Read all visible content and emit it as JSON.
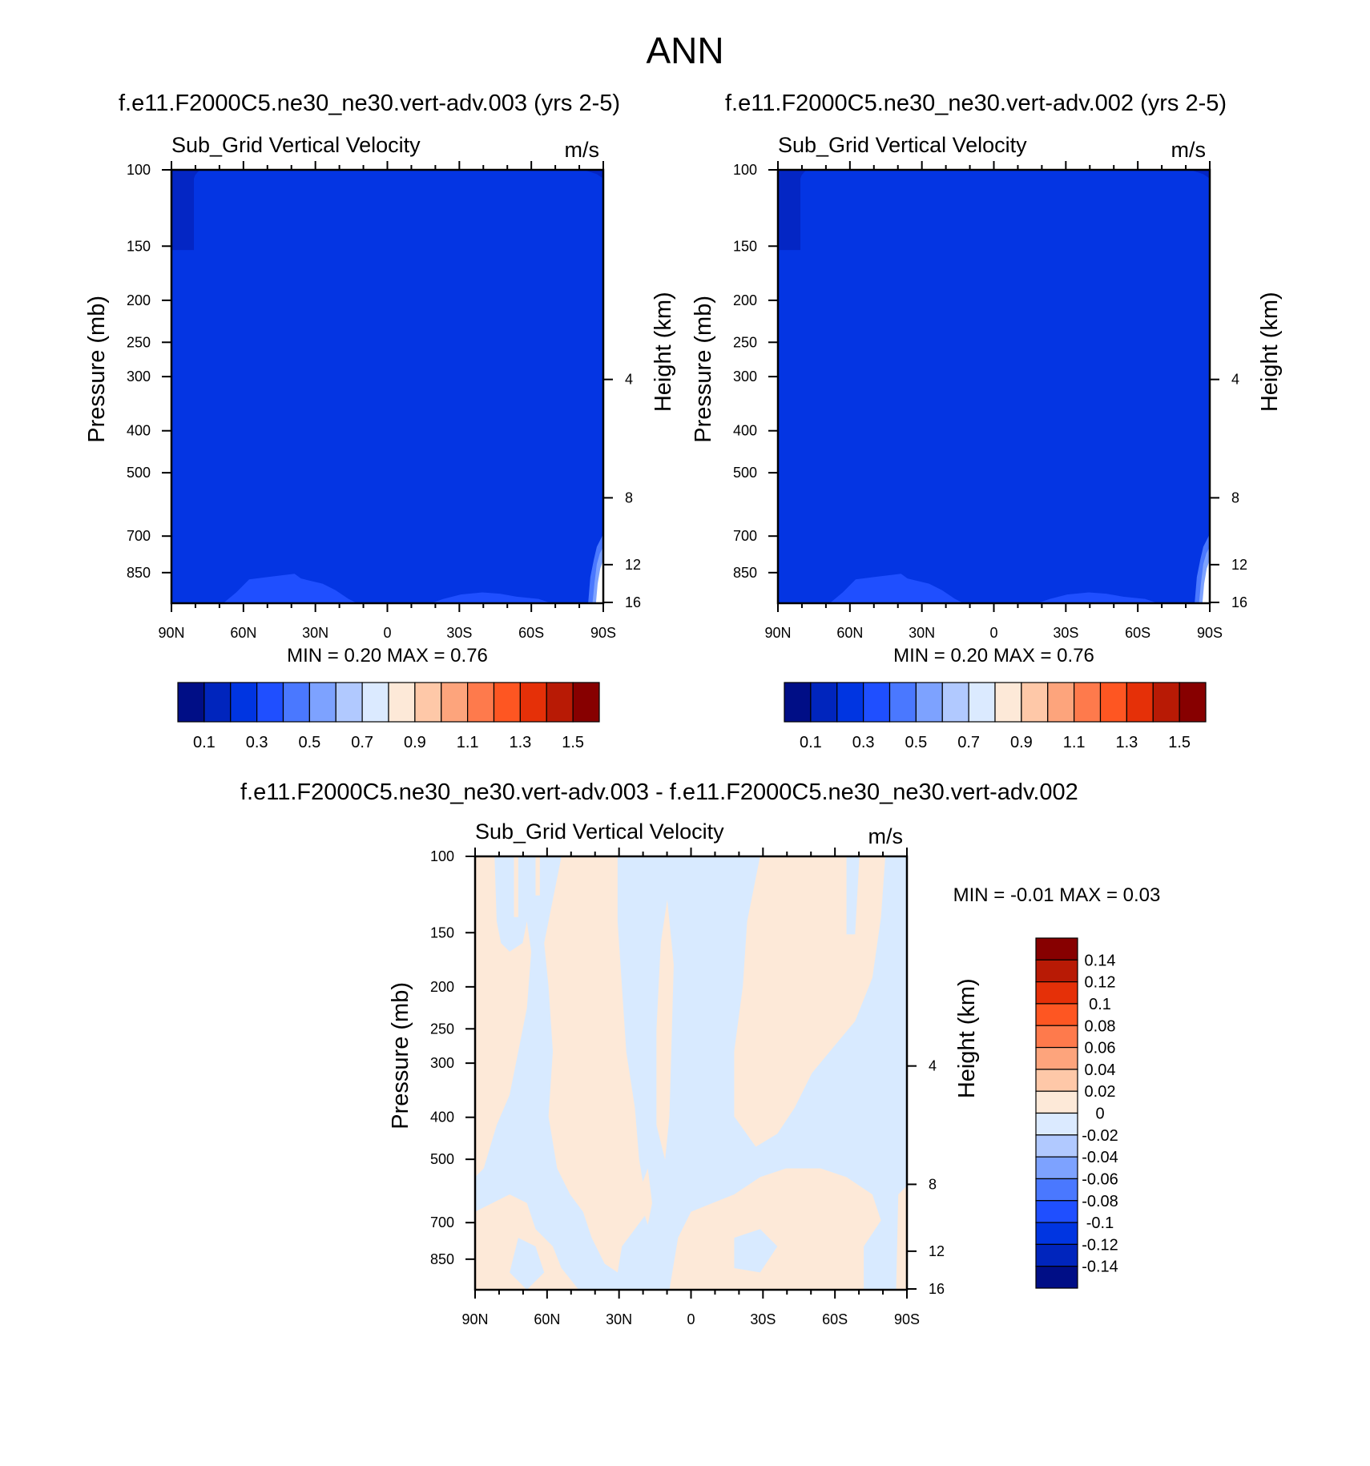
{
  "figure": {
    "title": "ANN",
    "case1": "f.e11.F2000C5.ne30_ne30.vert-adv.003 (yrs 2-5)",
    "case2": "f.e11.F2000C5.ne30_ne30.vert-adv.002 (yrs 2-5)",
    "diff_title": "f.e11.F2000C5.ne30_ne30.vert-adv.003 - f.e11.F2000C5.ne30_ne30.vert-adv.002"
  },
  "chart_data": [
    {
      "type": "heatmap",
      "panel": "case1",
      "title": "Sub_Grid Vertical Velocity",
      "units": "m/s",
      "xlabel": "",
      "ylabel": "Pressure (mb)",
      "y2label": "Height (km)",
      "x_ticks": [
        "90N",
        "60N",
        "30N",
        "0",
        "30S",
        "60S",
        "90S"
      ],
      "y_ticks": [
        100,
        150,
        200,
        250,
        300,
        400,
        500,
        700,
        850
      ],
      "y2_ticks": [
        16,
        12,
        8,
        4
      ],
      "ylim": [
        100,
        1000
      ],
      "min_label": "MIN =   0.20  MAX =   0.76",
      "min": 0.2,
      "max": 0.76,
      "colorbar": {
        "orientation": "horizontal",
        "labels": [
          "0.1",
          "0.3",
          "0.5",
          "0.7",
          "0.9",
          "1.1",
          "1.3",
          "1.5"
        ],
        "colors": [
          "#000e86",
          "#0025bd",
          "#0035e1",
          "#1f4fff",
          "#4a78ff",
          "#7da2ff",
          "#b1c9ff",
          "#dbeaff",
          "#fde9d8",
          "#fec8a8",
          "#fda47c",
          "#fe7a4c",
          "#fe5622",
          "#e53008",
          "#b81a05",
          "#870000"
        ]
      }
    },
    {
      "type": "heatmap",
      "panel": "case2",
      "title": "Sub_Grid Vertical Velocity",
      "units": "m/s",
      "xlabel": "",
      "ylabel": "Pressure (mb)",
      "y2label": "Height (km)",
      "x_ticks": [
        "90N",
        "60N",
        "30N",
        "0",
        "30S",
        "60S",
        "90S"
      ],
      "y_ticks": [
        100,
        150,
        200,
        250,
        300,
        400,
        500,
        700,
        850
      ],
      "y2_ticks": [
        16,
        12,
        8,
        4
      ],
      "ylim": [
        100,
        1000
      ],
      "min_label": "MIN =   0.20  MAX =   0.76",
      "min": 0.2,
      "max": 0.76,
      "colorbar": {
        "orientation": "horizontal",
        "labels": [
          "0.1",
          "0.3",
          "0.5",
          "0.7",
          "0.9",
          "1.1",
          "1.3",
          "1.5"
        ],
        "colors": [
          "#000e86",
          "#0025bd",
          "#0035e1",
          "#1f4fff",
          "#4a78ff",
          "#7da2ff",
          "#b1c9ff",
          "#dbeaff",
          "#fde9d8",
          "#fec8a8",
          "#fda47c",
          "#fe7a4c",
          "#fe5622",
          "#e53008",
          "#b81a05",
          "#870000"
        ]
      }
    },
    {
      "type": "heatmap",
      "panel": "difference",
      "title": "Sub_Grid Vertical Velocity",
      "units": "m/s",
      "xlabel": "",
      "ylabel": "Pressure (mb)",
      "y2label": "Height (km)",
      "x_ticks": [
        "90N",
        "60N",
        "30N",
        "0",
        "30S",
        "60S",
        "90S"
      ],
      "y_ticks": [
        100,
        150,
        200,
        250,
        300,
        400,
        500,
        700,
        850
      ],
      "y2_ticks": [
        16,
        12,
        8,
        4
      ],
      "ylim": [
        100,
        1000
      ],
      "min_label": "MIN =  -0.01  MAX =   0.03",
      "min": -0.01,
      "max": 0.03,
      "colorbar": {
        "orientation": "vertical",
        "labels": [
          "0.14",
          "0.12",
          "0.1",
          "0.08",
          "0.06",
          "0.04",
          "0.02",
          "0",
          "-0.02",
          "-0.04",
          "-0.06",
          "-0.08",
          "-0.1",
          "-0.12",
          "-0.14"
        ],
        "colors": [
          "#870000",
          "#b81a05",
          "#e53008",
          "#fe5622",
          "#fe7a4c",
          "#fda47c",
          "#fec8a8",
          "#fde9d8",
          "#dbeaff",
          "#b1c9ff",
          "#7da2ff",
          "#4a78ff",
          "#1f4fff",
          "#0035e1",
          "#0025bd",
          "#000e86"
        ]
      }
    }
  ]
}
